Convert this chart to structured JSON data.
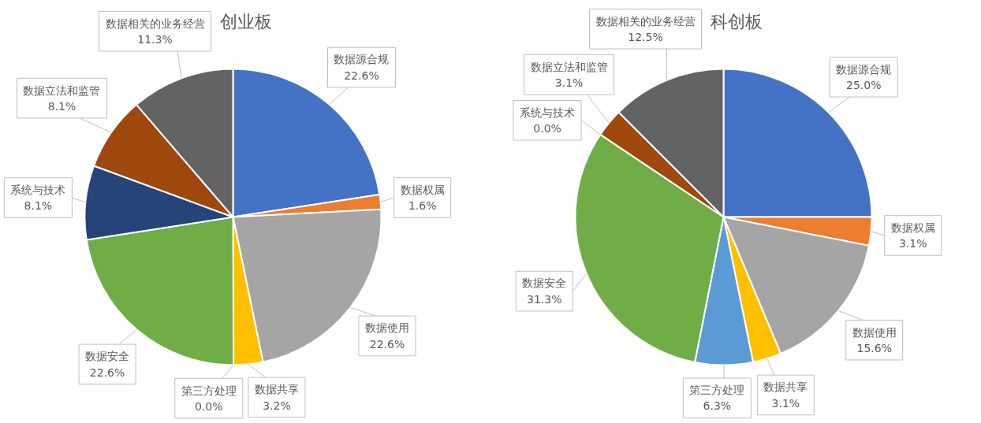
{
  "chart_data": [
    {
      "type": "pie",
      "title": "创业板",
      "categories": [
        "数据源合规",
        "数据权属",
        "数据使用",
        "数据共享",
        "第三方处理",
        "数据安全",
        "系统与技术",
        "数据立法和监管",
        "数据相关的业务经营"
      ],
      "values": [
        22.6,
        1.6,
        22.6,
        3.2,
        0.0,
        22.6,
        8.1,
        8.1,
        11.3
      ],
      "colors": [
        "#4472c4",
        "#ed7d31",
        "#a5a5a5",
        "#ffc000",
        "#5b9bd5",
        "#70ad47",
        "#264478",
        "#9e480e",
        "#636363"
      ],
      "value_labels": [
        "22.6%",
        "1.6%",
        "22.6%",
        "3.2%",
        "0.0%",
        "22.6%",
        "8.1%",
        "8.1%",
        "11.3%"
      ]
    },
    {
      "type": "pie",
      "title": "科创板",
      "categories": [
        "数据源合规",
        "数据权属",
        "数据使用",
        "数据共享",
        "第三方处理",
        "数据安全",
        "系统与技术",
        "数据立法和监管",
        "数据相关的业务经营"
      ],
      "values": [
        25.0,
        3.1,
        15.6,
        3.1,
        6.3,
        31.3,
        0.0,
        3.1,
        12.5
      ],
      "colors": [
        "#4472c4",
        "#ed7d31",
        "#a5a5a5",
        "#ffc000",
        "#5b9bd5",
        "#70ad47",
        "#264478",
        "#9e480e",
        "#636363"
      ],
      "value_labels": [
        "25.0%",
        "3.1%",
        "15.6%",
        "3.1%",
        "6.3%",
        "31.3%",
        "0.0%",
        "3.1%",
        "12.5%"
      ]
    }
  ]
}
